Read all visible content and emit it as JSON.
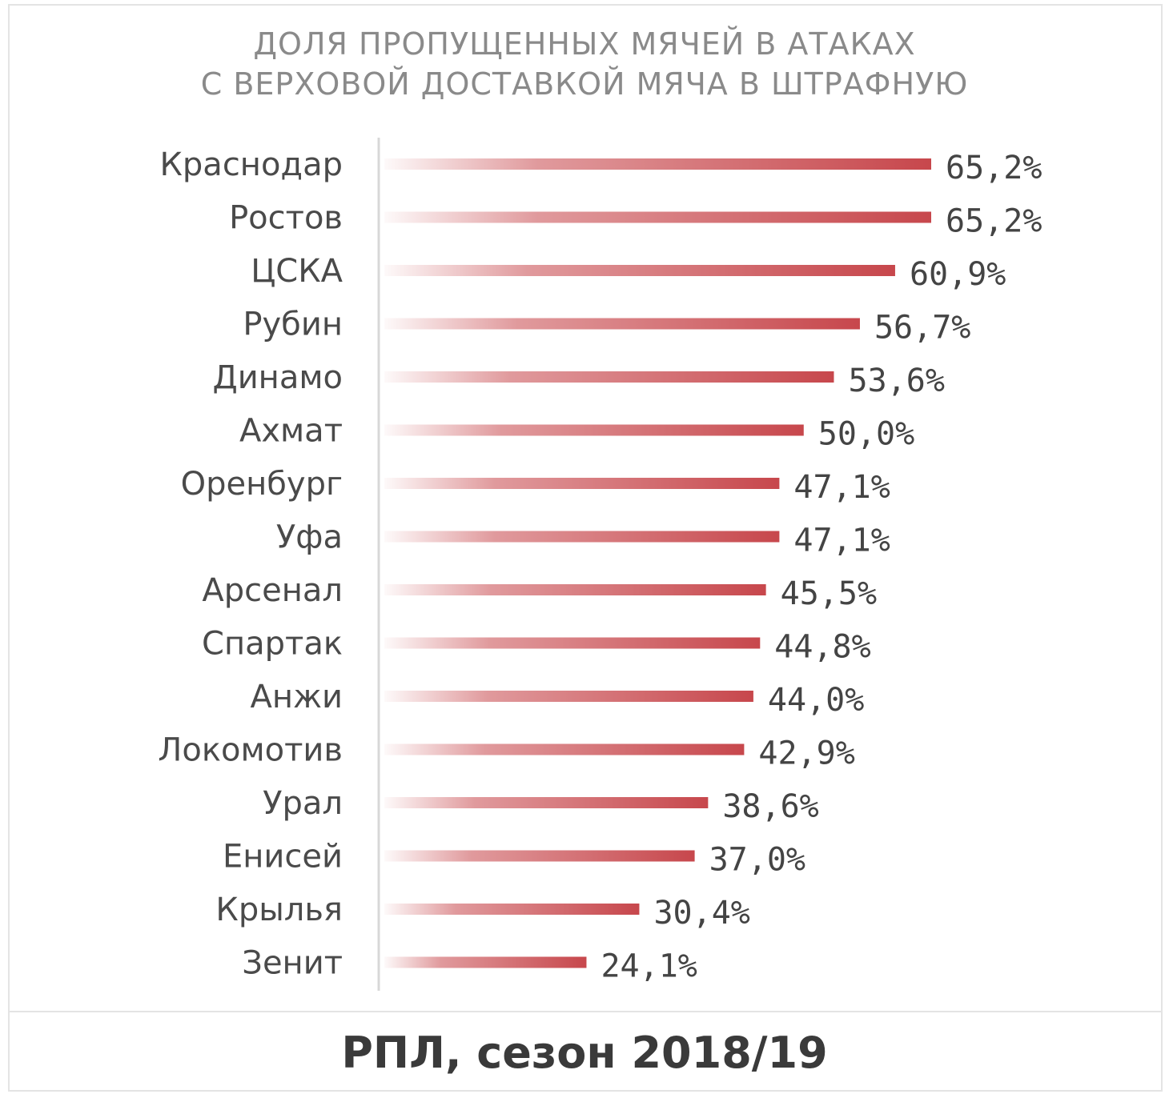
{
  "header": {
    "title_line1": "ДОЛЯ ПРОПУЩЕННЫХ МЯЧЕЙ В АТАКАХ",
    "title_line2": "С ВЕРХОВОЙ ДОСТАВКОЙ МЯЧА В ШТРАФНУЮ"
  },
  "footer": {
    "caption": "РПЛ, сезон 2018/19"
  },
  "colors": {
    "bar": "#c7474c",
    "axis": "#d8d8d8"
  },
  "chart_data": {
    "type": "bar",
    "orientation": "horizontal",
    "categories": [
      "Краснодар",
      "Ростов",
      "ЦСКА",
      "Рубин",
      "Динамо",
      "Ахмат",
      "Оренбург",
      "Уфа",
      "Арсенал",
      "Спартак",
      "Анжи",
      "Локомотив",
      "Урал",
      "Енисей",
      "Крылья",
      "Зенит"
    ],
    "values": [
      65.2,
      65.2,
      60.9,
      56.7,
      53.6,
      50.0,
      47.1,
      47.1,
      45.5,
      44.8,
      44.0,
      42.9,
      38.6,
      37.0,
      30.4,
      24.1
    ],
    "value_labels": [
      "65,2%",
      "65,2%",
      "60,9%",
      "56,7%",
      "53,6%",
      "50,0%",
      "47,1%",
      "47,1%",
      "45,5%",
      "44,8%",
      "44,0%",
      "42,9%",
      "38,6%",
      "37,0%",
      "30,4%",
      "24,1%"
    ],
    "title": "ДОЛЯ ПРОПУЩЕННЫХ МЯЧЕЙ В АТАКАХ С ВЕРХОВОЙ ДОСТАВКОЙ МЯЧА В ШТРАФНУЮ",
    "xlabel": "",
    "ylabel": "",
    "xlim": [
      0,
      65.2
    ],
    "grid": false,
    "legend": "none"
  }
}
